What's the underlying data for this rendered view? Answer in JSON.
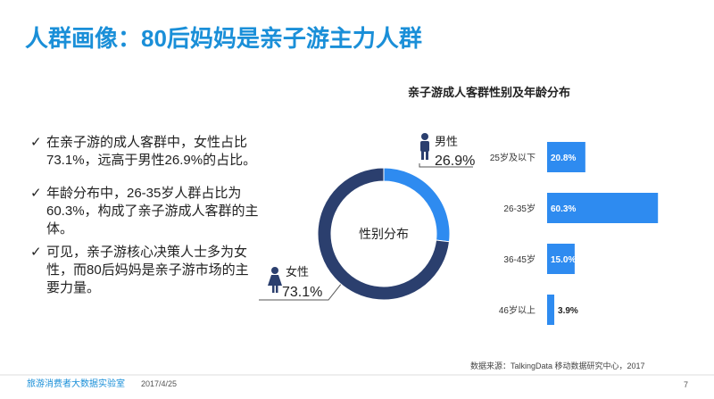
{
  "slide": {
    "title": "人群画像：80后妈妈是亲子游主力人群",
    "bullets": [
      "在亲子游的成人客群中，女性占比73.1%，远高于男性26.9%的占比。",
      "年龄分布中，26-35岁人群占比为60.3%，构成了亲子游成人客群的主体。",
      "可见，亲子游核心决策人士多为女性，而80后妈妈是亲子游市场的主要力量。"
    ],
    "footer_left": "旅游消费者大数据实验室",
    "date": "2017/4/25",
    "source": "数据来源：TalkingData 移动数据研究中心，2017",
    "page": "7"
  },
  "chart_data": [
    {
      "type": "pie",
      "center_label": "性别分布",
      "categories": [
        "男性",
        "女性"
      ],
      "values": [
        26.9,
        73.1
      ],
      "value_labels": [
        "26.9%",
        "73.1%"
      ],
      "colors": [
        "#2e8bf0",
        "#2b3f6e"
      ]
    },
    {
      "type": "bar",
      "title": "亲子游成人客群性别及年龄分布",
      "categories": [
        "25岁及以下",
        "26-35岁",
        "36-45岁",
        "46岁以上"
      ],
      "values": [
        20.8,
        60.3,
        15.0,
        3.9
      ],
      "value_labels": [
        "20.8%",
        "60.3%",
        "15.0%",
        "3.9%"
      ],
      "color": "#2e8bf0"
    }
  ]
}
